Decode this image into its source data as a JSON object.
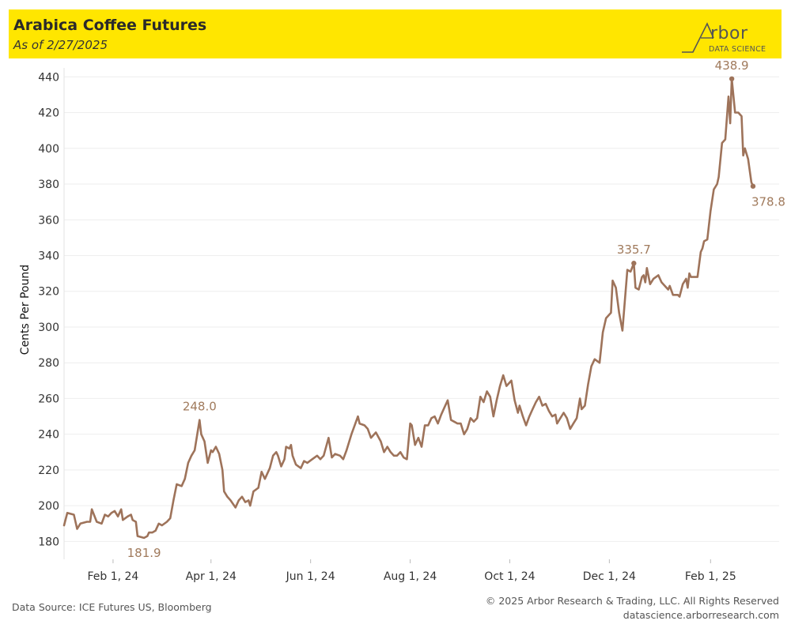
{
  "header": {
    "title": "Arabica Coffee Futures",
    "subtitle": "As of 2/27/2025"
  },
  "logo": {
    "word": "rbor",
    "sub": "DATA SCIENCE"
  },
  "footer": {
    "source": "Data Source: ICE Futures US, Bloomberg",
    "copyright": "© 2025 Arbor Research & Trading, LLC. All Rights Reserved",
    "website": "datascience.arborresearch.com"
  },
  "colors": {
    "header_bg": "#ffe600",
    "line": "#9e735a",
    "annotation": "#a07a5c",
    "grid": "#eeeeee"
  },
  "chart_data": {
    "type": "line",
    "title": "Arabica Coffee Futures",
    "subtitle": "As of 2/27/2025",
    "xlabel": "",
    "ylabel": "Cents Per Pound",
    "ylim": [
      170,
      445
    ],
    "yticks": [
      180,
      200,
      220,
      240,
      260,
      280,
      300,
      320,
      340,
      360,
      380,
      400,
      420,
      440
    ],
    "x_start": "2024-01-02",
    "x_end": "2025-03-15",
    "xticks": [
      {
        "date": "2024-02-01",
        "label": "Feb 1, 24"
      },
      {
        "date": "2024-04-01",
        "label": "Apr 1, 24"
      },
      {
        "date": "2024-06-01",
        "label": "Jun 1, 24"
      },
      {
        "date": "2024-08-01",
        "label": "Aug 1, 24"
      },
      {
        "date": "2024-10-01",
        "label": "Oct 1, 24"
      },
      {
        "date": "2024-12-01",
        "label": "Dec 1, 24"
      },
      {
        "date": "2025-02-01",
        "label": "Feb 1, 25"
      }
    ],
    "grid": true,
    "series": [
      {
        "name": "Arabica Coffee Futures",
        "points": [
          [
            "2024-01-02",
            189
          ],
          [
            "2024-01-04",
            196
          ],
          [
            "2024-01-08",
            195
          ],
          [
            "2024-01-10",
            187
          ],
          [
            "2024-01-12",
            190
          ],
          [
            "2024-01-16",
            191
          ],
          [
            "2024-01-18",
            191
          ],
          [
            "2024-01-19",
            198
          ],
          [
            "2024-01-22",
            191
          ],
          [
            "2024-01-25",
            190
          ],
          [
            "2024-01-27",
            195
          ],
          [
            "2024-01-29",
            194
          ],
          [
            "2024-01-31",
            196
          ],
          [
            "2024-02-02",
            197
          ],
          [
            "2024-02-04",
            194
          ],
          [
            "2024-02-06",
            198
          ],
          [
            "2024-02-07",
            192
          ],
          [
            "2024-02-10",
            194
          ],
          [
            "2024-02-12",
            195
          ],
          [
            "2024-02-13",
            192
          ],
          [
            "2024-02-15",
            191
          ],
          [
            "2024-02-16",
            183
          ],
          [
            "2024-02-20",
            182
          ],
          [
            "2024-02-22",
            183
          ],
          [
            "2024-02-23",
            185
          ],
          [
            "2024-02-25",
            185
          ],
          [
            "2024-02-27",
            186
          ],
          [
            "2024-02-29",
            190
          ],
          [
            "2024-03-02",
            189
          ],
          [
            "2024-03-05",
            191
          ],
          [
            "2024-03-07",
            193
          ],
          [
            "2024-03-09",
            203
          ],
          [
            "2024-03-11",
            212
          ],
          [
            "2024-03-14",
            211
          ],
          [
            "2024-03-16",
            215
          ],
          [
            "2024-03-18",
            224
          ],
          [
            "2024-03-20",
            228
          ],
          [
            "2024-03-22",
            231
          ],
          [
            "2024-03-25",
            248
          ],
          [
            "2024-03-26",
            240
          ],
          [
            "2024-03-28",
            236
          ],
          [
            "2024-03-30",
            224
          ],
          [
            "2024-04-01",
            231
          ],
          [
            "2024-04-02",
            230
          ],
          [
            "2024-04-04",
            233
          ],
          [
            "2024-04-06",
            229
          ],
          [
            "2024-04-08",
            220
          ],
          [
            "2024-04-09",
            208
          ],
          [
            "2024-04-11",
            205
          ],
          [
            "2024-04-13",
            203
          ],
          [
            "2024-04-16",
            199
          ],
          [
            "2024-04-18",
            203
          ],
          [
            "2024-04-20",
            205
          ],
          [
            "2024-04-22",
            202
          ],
          [
            "2024-04-24",
            203
          ],
          [
            "2024-04-25",
            200
          ],
          [
            "2024-04-27",
            208
          ],
          [
            "2024-04-30",
            210
          ],
          [
            "2024-05-02",
            219
          ],
          [
            "2024-05-04",
            215
          ],
          [
            "2024-05-07",
            221
          ],
          [
            "2024-05-09",
            228
          ],
          [
            "2024-05-11",
            230
          ],
          [
            "2024-05-12",
            228
          ],
          [
            "2024-05-14",
            222
          ],
          [
            "2024-05-16",
            226
          ],
          [
            "2024-05-17",
            233
          ],
          [
            "2024-05-19",
            232
          ],
          [
            "2024-05-20",
            234
          ],
          [
            "2024-05-21",
            228
          ],
          [
            "2024-05-23",
            223
          ],
          [
            "2024-05-26",
            221
          ],
          [
            "2024-05-28",
            225
          ],
          [
            "2024-05-30",
            224
          ],
          [
            "2024-06-02",
            226
          ],
          [
            "2024-06-05",
            228
          ],
          [
            "2024-06-07",
            226
          ],
          [
            "2024-06-09",
            228
          ],
          [
            "2024-06-12",
            238
          ],
          [
            "2024-06-14",
            227
          ],
          [
            "2024-06-16",
            229
          ],
          [
            "2024-06-19",
            228
          ],
          [
            "2024-06-21",
            226
          ],
          [
            "2024-06-23",
            231
          ],
          [
            "2024-06-26",
            240
          ],
          [
            "2024-06-28",
            245
          ],
          [
            "2024-06-30",
            250
          ],
          [
            "2024-07-01",
            246
          ],
          [
            "2024-07-04",
            245
          ],
          [
            "2024-07-06",
            243
          ],
          [
            "2024-07-08",
            238
          ],
          [
            "2024-07-11",
            241
          ],
          [
            "2024-07-14",
            236
          ],
          [
            "2024-07-16",
            230
          ],
          [
            "2024-07-18",
            233
          ],
          [
            "2024-07-20",
            230
          ],
          [
            "2024-07-22",
            228
          ],
          [
            "2024-07-24",
            228
          ],
          [
            "2024-07-26",
            230
          ],
          [
            "2024-07-28",
            227
          ],
          [
            "2024-07-30",
            226
          ],
          [
            "2024-08-01",
            246
          ],
          [
            "2024-08-02",
            245
          ],
          [
            "2024-08-04",
            234
          ],
          [
            "2024-08-06",
            238
          ],
          [
            "2024-08-08",
            233
          ],
          [
            "2024-08-10",
            245
          ],
          [
            "2024-08-12",
            245
          ],
          [
            "2024-08-14",
            249
          ],
          [
            "2024-08-16",
            250
          ],
          [
            "2024-08-18",
            246
          ],
          [
            "2024-08-20",
            251
          ],
          [
            "2024-08-22",
            255
          ],
          [
            "2024-08-24",
            259
          ],
          [
            "2024-08-26",
            248
          ],
          [
            "2024-08-28",
            247
          ],
          [
            "2024-08-30",
            246
          ],
          [
            "2024-09-01",
            246
          ],
          [
            "2024-09-03",
            240
          ],
          [
            "2024-09-05",
            243
          ],
          [
            "2024-09-07",
            249
          ],
          [
            "2024-09-09",
            247
          ],
          [
            "2024-09-11",
            249
          ],
          [
            "2024-09-13",
            261
          ],
          [
            "2024-09-15",
            258
          ],
          [
            "2024-09-17",
            264
          ],
          [
            "2024-09-19",
            261
          ],
          [
            "2024-09-21",
            250
          ],
          [
            "2024-09-23",
            259
          ],
          [
            "2024-09-25",
            267
          ],
          [
            "2024-09-27",
            273
          ],
          [
            "2024-09-29",
            267
          ],
          [
            "2024-10-02",
            270
          ],
          [
            "2024-10-04",
            259
          ],
          [
            "2024-10-06",
            252
          ],
          [
            "2024-10-07",
            256
          ],
          [
            "2024-10-09",
            250
          ],
          [
            "2024-10-11",
            245
          ],
          [
            "2024-10-13",
            250
          ],
          [
            "2024-10-15",
            254
          ],
          [
            "2024-10-17",
            258
          ],
          [
            "2024-10-19",
            261
          ],
          [
            "2024-10-21",
            256
          ],
          [
            "2024-10-23",
            257
          ],
          [
            "2024-10-25",
            253
          ],
          [
            "2024-10-27",
            250
          ],
          [
            "2024-10-29",
            251
          ],
          [
            "2024-10-30",
            246
          ],
          [
            "2024-11-01",
            249
          ],
          [
            "2024-11-03",
            252
          ],
          [
            "2024-11-05",
            249
          ],
          [
            "2024-11-07",
            243
          ],
          [
            "2024-11-09",
            246
          ],
          [
            "2024-11-11",
            249
          ],
          [
            "2024-11-13",
            260
          ],
          [
            "2024-11-14",
            254
          ],
          [
            "2024-11-16",
            256
          ],
          [
            "2024-11-18",
            268
          ],
          [
            "2024-11-20",
            278
          ],
          [
            "2024-11-22",
            282
          ],
          [
            "2024-11-25",
            280
          ],
          [
            "2024-11-27",
            297
          ],
          [
            "2024-11-29",
            305
          ],
          [
            "2024-12-02",
            308
          ],
          [
            "2024-12-03",
            326
          ],
          [
            "2024-12-05",
            322
          ],
          [
            "2024-12-07",
            308
          ],
          [
            "2024-12-09",
            298
          ],
          [
            "2024-12-12",
            332
          ],
          [
            "2024-12-14",
            331
          ],
          [
            "2024-12-16",
            335.7
          ],
          [
            "2024-12-17",
            322
          ],
          [
            "2024-12-19",
            321
          ],
          [
            "2024-12-21",
            328
          ],
          [
            "2024-12-22",
            329
          ],
          [
            "2024-12-23",
            325
          ],
          [
            "2024-12-24",
            333
          ],
          [
            "2024-12-26",
            324
          ],
          [
            "2024-12-28",
            327
          ],
          [
            "2024-12-31",
            329
          ],
          [
            "2025-01-02",
            325
          ],
          [
            "2025-01-04",
            323
          ],
          [
            "2025-01-06",
            321
          ],
          [
            "2025-01-07",
            323
          ],
          [
            "2025-01-09",
            318
          ],
          [
            "2025-01-12",
            318
          ],
          [
            "2025-01-13",
            317
          ],
          [
            "2025-01-15",
            324
          ],
          [
            "2025-01-17",
            327
          ],
          [
            "2025-01-18",
            322
          ],
          [
            "2025-01-19",
            330
          ],
          [
            "2025-01-20",
            328
          ],
          [
            "2025-01-21",
            328
          ],
          [
            "2025-01-24",
            328
          ],
          [
            "2025-01-26",
            342
          ],
          [
            "2025-01-27",
            344
          ],
          [
            "2025-01-28",
            348
          ],
          [
            "2025-01-30",
            349
          ],
          [
            "2025-02-01",
            365
          ],
          [
            "2025-02-03",
            377
          ],
          [
            "2025-02-05",
            380
          ],
          [
            "2025-02-06",
            384
          ],
          [
            "2025-02-08",
            403
          ],
          [
            "2025-02-10",
            405
          ],
          [
            "2025-02-12",
            429
          ],
          [
            "2025-02-13",
            414
          ],
          [
            "2025-02-14",
            438.9
          ],
          [
            "2025-02-16",
            420
          ],
          [
            "2025-02-18",
            420
          ],
          [
            "2025-02-20",
            418
          ],
          [
            "2025-02-21",
            396
          ],
          [
            "2025-02-22",
            400
          ],
          [
            "2025-02-24",
            394
          ],
          [
            "2025-02-26",
            381
          ],
          [
            "2025-02-27",
            378.8
          ]
        ]
      }
    ],
    "annotations": [
      {
        "label": "248.0",
        "date": "2024-03-25",
        "value": 248.0,
        "position": "above",
        "marker": false
      },
      {
        "label": "181.9",
        "date": "2024-02-20",
        "value": 181.9,
        "position": "below",
        "marker": false
      },
      {
        "label": "335.7",
        "date": "2024-12-16",
        "value": 335.7,
        "position": "above",
        "marker": true
      },
      {
        "label": "438.9",
        "date": "2025-02-14",
        "value": 438.9,
        "position": "above",
        "marker": true
      },
      {
        "label": "378.8",
        "date": "2025-02-27",
        "value": 378.8,
        "position": "below-right",
        "marker": true
      }
    ]
  }
}
